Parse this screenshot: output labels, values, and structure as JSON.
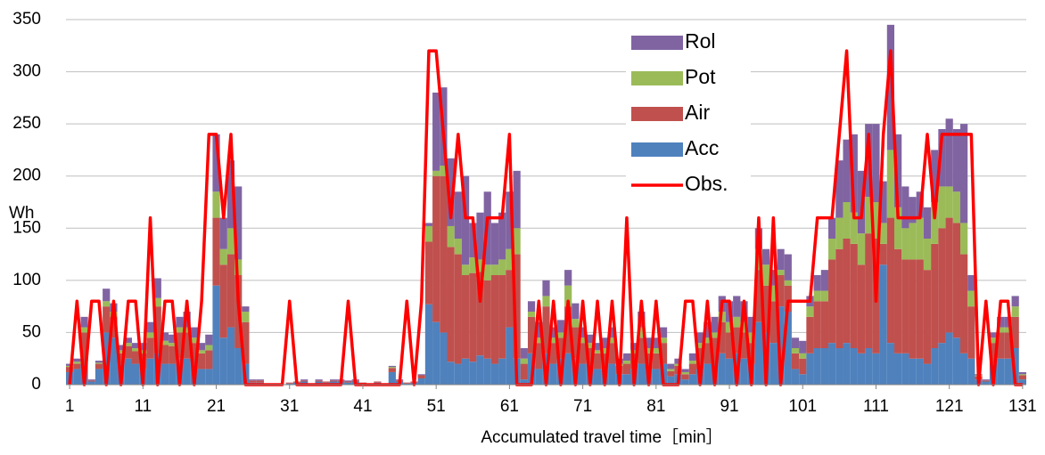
{
  "chart_data": {
    "type": "bar",
    "stacked": true,
    "y_label": "Wh",
    "x_label": "Accumulated travel time［min］",
    "categories": [
      "1",
      null,
      null,
      null,
      null,
      null,
      null,
      null,
      null,
      null,
      "11",
      null,
      null,
      null,
      null,
      null,
      null,
      null,
      null,
      null,
      "21",
      null,
      null,
      null,
      null,
      null,
      null,
      null,
      null,
      null,
      "31",
      null,
      null,
      null,
      null,
      null,
      null,
      null,
      null,
      null,
      "41",
      null,
      null,
      null,
      null,
      null,
      null,
      null,
      null,
      null,
      "51",
      null,
      null,
      null,
      null,
      null,
      null,
      null,
      null,
      null,
      "61",
      null,
      null,
      null,
      null,
      null,
      null,
      null,
      null,
      null,
      "71",
      null,
      null,
      null,
      null,
      null,
      null,
      null,
      null,
      null,
      "81",
      null,
      null,
      null,
      null,
      null,
      null,
      null,
      null,
      null,
      "91",
      null,
      null,
      null,
      null,
      null,
      null,
      null,
      null,
      null,
      "101",
      null,
      null,
      null,
      null,
      null,
      null,
      null,
      null,
      null,
      "111",
      null,
      null,
      null,
      null,
      null,
      null,
      null,
      null,
      null,
      "121",
      null,
      null,
      null,
      null,
      null,
      null,
      null,
      null,
      null,
      "131"
    ],
    "series": [
      {
        "name": "Acc",
        "color": "#4f81bd",
        "values": [
          12,
          15,
          20,
          3,
          15,
          50,
          45,
          20,
          25,
          20,
          15,
          25,
          30,
          20,
          20,
          25,
          25,
          20,
          15,
          15,
          95,
          45,
          55,
          35,
          20,
          2,
          2,
          0,
          0,
          0,
          1,
          2,
          3,
          0,
          3,
          2,
          3,
          3,
          2,
          3,
          1,
          0,
          2,
          0,
          12,
          3,
          1,
          2,
          6,
          77,
          60,
          50,
          22,
          20,
          25,
          22,
          28,
          25,
          20,
          25,
          55,
          25,
          5,
          30,
          15,
          30,
          20,
          25,
          30,
          25,
          20,
          20,
          15,
          15,
          20,
          10,
          10,
          15,
          20,
          15,
          15,
          20,
          8,
          10,
          5,
          10,
          15,
          20,
          20,
          30,
          25,
          30,
          25,
          20,
          60,
          50,
          40,
          75,
          70,
          15,
          10,
          30,
          35,
          35,
          40,
          35,
          40,
          35,
          30,
          35,
          30,
          115,
          40,
          30,
          30,
          25,
          25,
          20,
          35,
          40,
          50,
          45,
          30,
          25,
          5,
          3,
          20,
          25,
          25,
          35,
          5
        ]
      },
      {
        "name": "Air",
        "color": "#c0504d",
        "values": [
          5,
          5,
          30,
          1,
          5,
          25,
          20,
          10,
          12,
          12,
          15,
          20,
          45,
          18,
          17,
          25,
          25,
          20,
          15,
          18,
          65,
          70,
          70,
          70,
          40,
          2,
          2,
          0,
          0,
          0,
          1,
          1,
          1,
          0,
          1,
          1,
          1,
          1,
          1,
          1,
          1,
          0,
          1,
          0,
          4,
          1,
          1,
          1,
          3,
          60,
          140,
          150,
          110,
          105,
          80,
          85,
          80,
          75,
          85,
          80,
          55,
          100,
          15,
          35,
          25,
          45,
          20,
          20,
          45,
          30,
          20,
          15,
          15,
          15,
          20,
          8,
          10,
          15,
          25,
          15,
          15,
          20,
          5,
          8,
          5,
          10,
          20,
          20,
          25,
          30,
          25,
          25,
          25,
          20,
          50,
          45,
          40,
          30,
          25,
          15,
          15,
          35,
          45,
          45,
          80,
          95,
          100,
          100,
          85,
          110,
          110,
          20,
          120,
          100,
          90,
          95,
          95,
          90,
          100,
          110,
          110,
          110,
          95,
          50,
          3,
          1,
          20,
          25,
          25,
          30,
          4
        ]
      },
      {
        "name": "Pot",
        "color": "#9bbb59",
        "values": [
          1,
          2,
          5,
          0,
          1,
          5,
          5,
          3,
          3,
          3,
          3,
          5,
          8,
          4,
          3,
          5,
          5,
          5,
          3,
          5,
          25,
          15,
          25,
          15,
          10,
          0,
          0,
          0,
          0,
          0,
          0,
          0,
          0,
          0,
          0,
          0,
          0,
          0,
          0,
          0,
          0,
          0,
          0,
          0,
          1,
          0,
          0,
          0,
          0,
          15,
          5,
          10,
          20,
          15,
          10,
          15,
          12,
          15,
          10,
          15,
          20,
          25,
          5,
          5,
          5,
          10,
          5,
          5,
          20,
          8,
          5,
          5,
          3,
          5,
          5,
          2,
          3,
          3,
          10,
          5,
          5,
          5,
          2,
          2,
          2,
          3,
          5,
          5,
          5,
          10,
          10,
          10,
          10,
          10,
          20,
          20,
          15,
          5,
          5,
          5,
          5,
          10,
          10,
          10,
          20,
          30,
          35,
          30,
          30,
          35,
          35,
          20,
          65,
          40,
          30,
          35,
          40,
          30,
          40,
          40,
          30,
          30,
          30,
          15,
          1,
          0,
          5,
          5,
          5,
          10,
          1
        ]
      },
      {
        "name": "Rol",
        "color": "#8064a2",
        "values": [
          2,
          3,
          10,
          1,
          2,
          12,
          8,
          5,
          5,
          5,
          7,
          10,
          19,
          8,
          8,
          10,
          15,
          10,
          7,
          10,
          55,
          30,
          65,
          70,
          5,
          1,
          1,
          0,
          0,
          0,
          0,
          0,
          1,
          0,
          1,
          0,
          1,
          1,
          1,
          1,
          0,
          0,
          0,
          0,
          1,
          1,
          0,
          0,
          1,
          3,
          75,
          75,
          65,
          45,
          85,
          33,
          45,
          70,
          40,
          45,
          55,
          55,
          10,
          10,
          15,
          15,
          10,
          12,
          15,
          15,
          10,
          8,
          7,
          10,
          10,
          5,
          7,
          7,
          15,
          10,
          10,
          10,
          5,
          5,
          3,
          7,
          10,
          15,
          15,
          15,
          20,
          20,
          20,
          15,
          20,
          15,
          15,
          20,
          25,
          10,
          12,
          10,
          15,
          20,
          20,
          55,
          60,
          75,
          60,
          70,
          75,
          40,
          120,
          70,
          40,
          25,
          25,
          30,
          50,
          55,
          65,
          60,
          95,
          15,
          1,
          1,
          5,
          10,
          10,
          10,
          2
        ]
      },
      {
        "name": "Obs.",
        "color": "#ff0000",
        "type": "line",
        "values": [
          0,
          80,
          0,
          80,
          80,
          0,
          80,
          0,
          80,
          80,
          0,
          160,
          0,
          80,
          80,
          0,
          80,
          0,
          80,
          240,
          240,
          160,
          240,
          80,
          0,
          0,
          0,
          0,
          0,
          0,
          80,
          0,
          0,
          0,
          0,
          0,
          0,
          0,
          80,
          0,
          0,
          0,
          0,
          0,
          0,
          0,
          80,
          0,
          80,
          320,
          320,
          240,
          160,
          240,
          160,
          160,
          80,
          160,
          160,
          160,
          240,
          0,
          0,
          0,
          80,
          0,
          80,
          0,
          80,
          0,
          80,
          0,
          80,
          0,
          80,
          0,
          160,
          0,
          80,
          0,
          80,
          0,
          0,
          0,
          80,
          80,
          0,
          80,
          0,
          80,
          80,
          0,
          80,
          0,
          160,
          0,
          160,
          0,
          80,
          80,
          80,
          80,
          160,
          160,
          160,
          240,
          320,
          160,
          160,
          240,
          80,
          240,
          320,
          160,
          160,
          160,
          160,
          240,
          160,
          240,
          240,
          240,
          240,
          240,
          0,
          80,
          0,
          80,
          80,
          0,
          0
        ]
      }
    ],
    "ylim": [
      0,
      350
    ],
    "yticks": [
      0,
      50,
      100,
      150,
      200,
      250,
      300,
      350
    ],
    "grid": true
  }
}
